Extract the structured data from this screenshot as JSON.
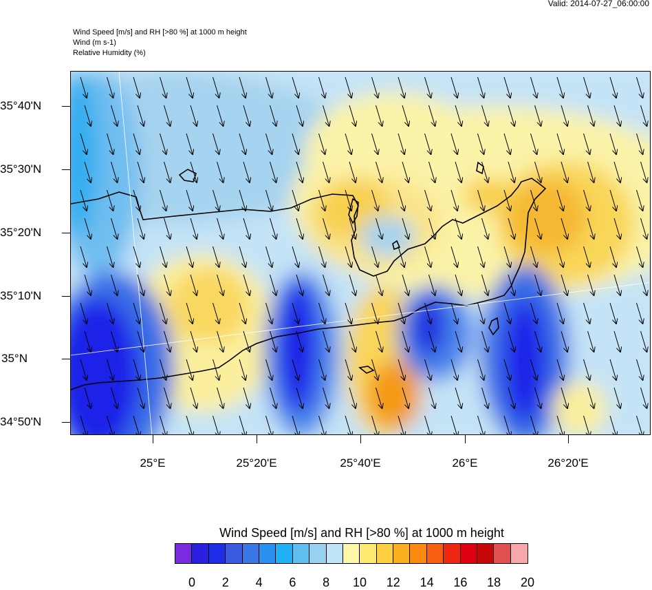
{
  "valid_label": "Valid: 2014-07-27_06:00:00",
  "header": {
    "line1": "Wind Speed [m/s] and RH [>80 %] at 1000 m height",
    "line2": "Wind   (m s-1)",
    "line3": "Relative Humidity   (%)"
  },
  "map": {
    "lat_labels": [
      "35°40'N",
      "35°30'N",
      "35°20'N",
      "35°10'N",
      "35°N",
      "34°50'N"
    ],
    "lon_labels": [
      "25°E",
      "25°20'E",
      "25°40'E",
      "26°E",
      "26°20'E"
    ],
    "arrow_direction": "south-southeast"
  },
  "colorbar": {
    "title": "Wind Speed [m/s] and RH [>80 %] at 1000 m height",
    "labels": [
      "0",
      "2",
      "4",
      "6",
      "8",
      "10",
      "12",
      "14",
      "16",
      "18",
      "20"
    ],
    "colors": [
      "#7a2be0",
      "#2a1ee0",
      "#1e2ee8",
      "#3a5ae0",
      "#3a78e8",
      "#2a90f0",
      "#20b0f5",
      "#60bff0",
      "#98d0f0",
      "#c0e4f8",
      "#fdf8a8",
      "#fde870",
      "#fcd040",
      "#fcb020",
      "#fc8a10",
      "#f86010",
      "#f02810",
      "#e00010",
      "#c80808",
      "#e05050",
      "#f8a8a8"
    ]
  }
}
